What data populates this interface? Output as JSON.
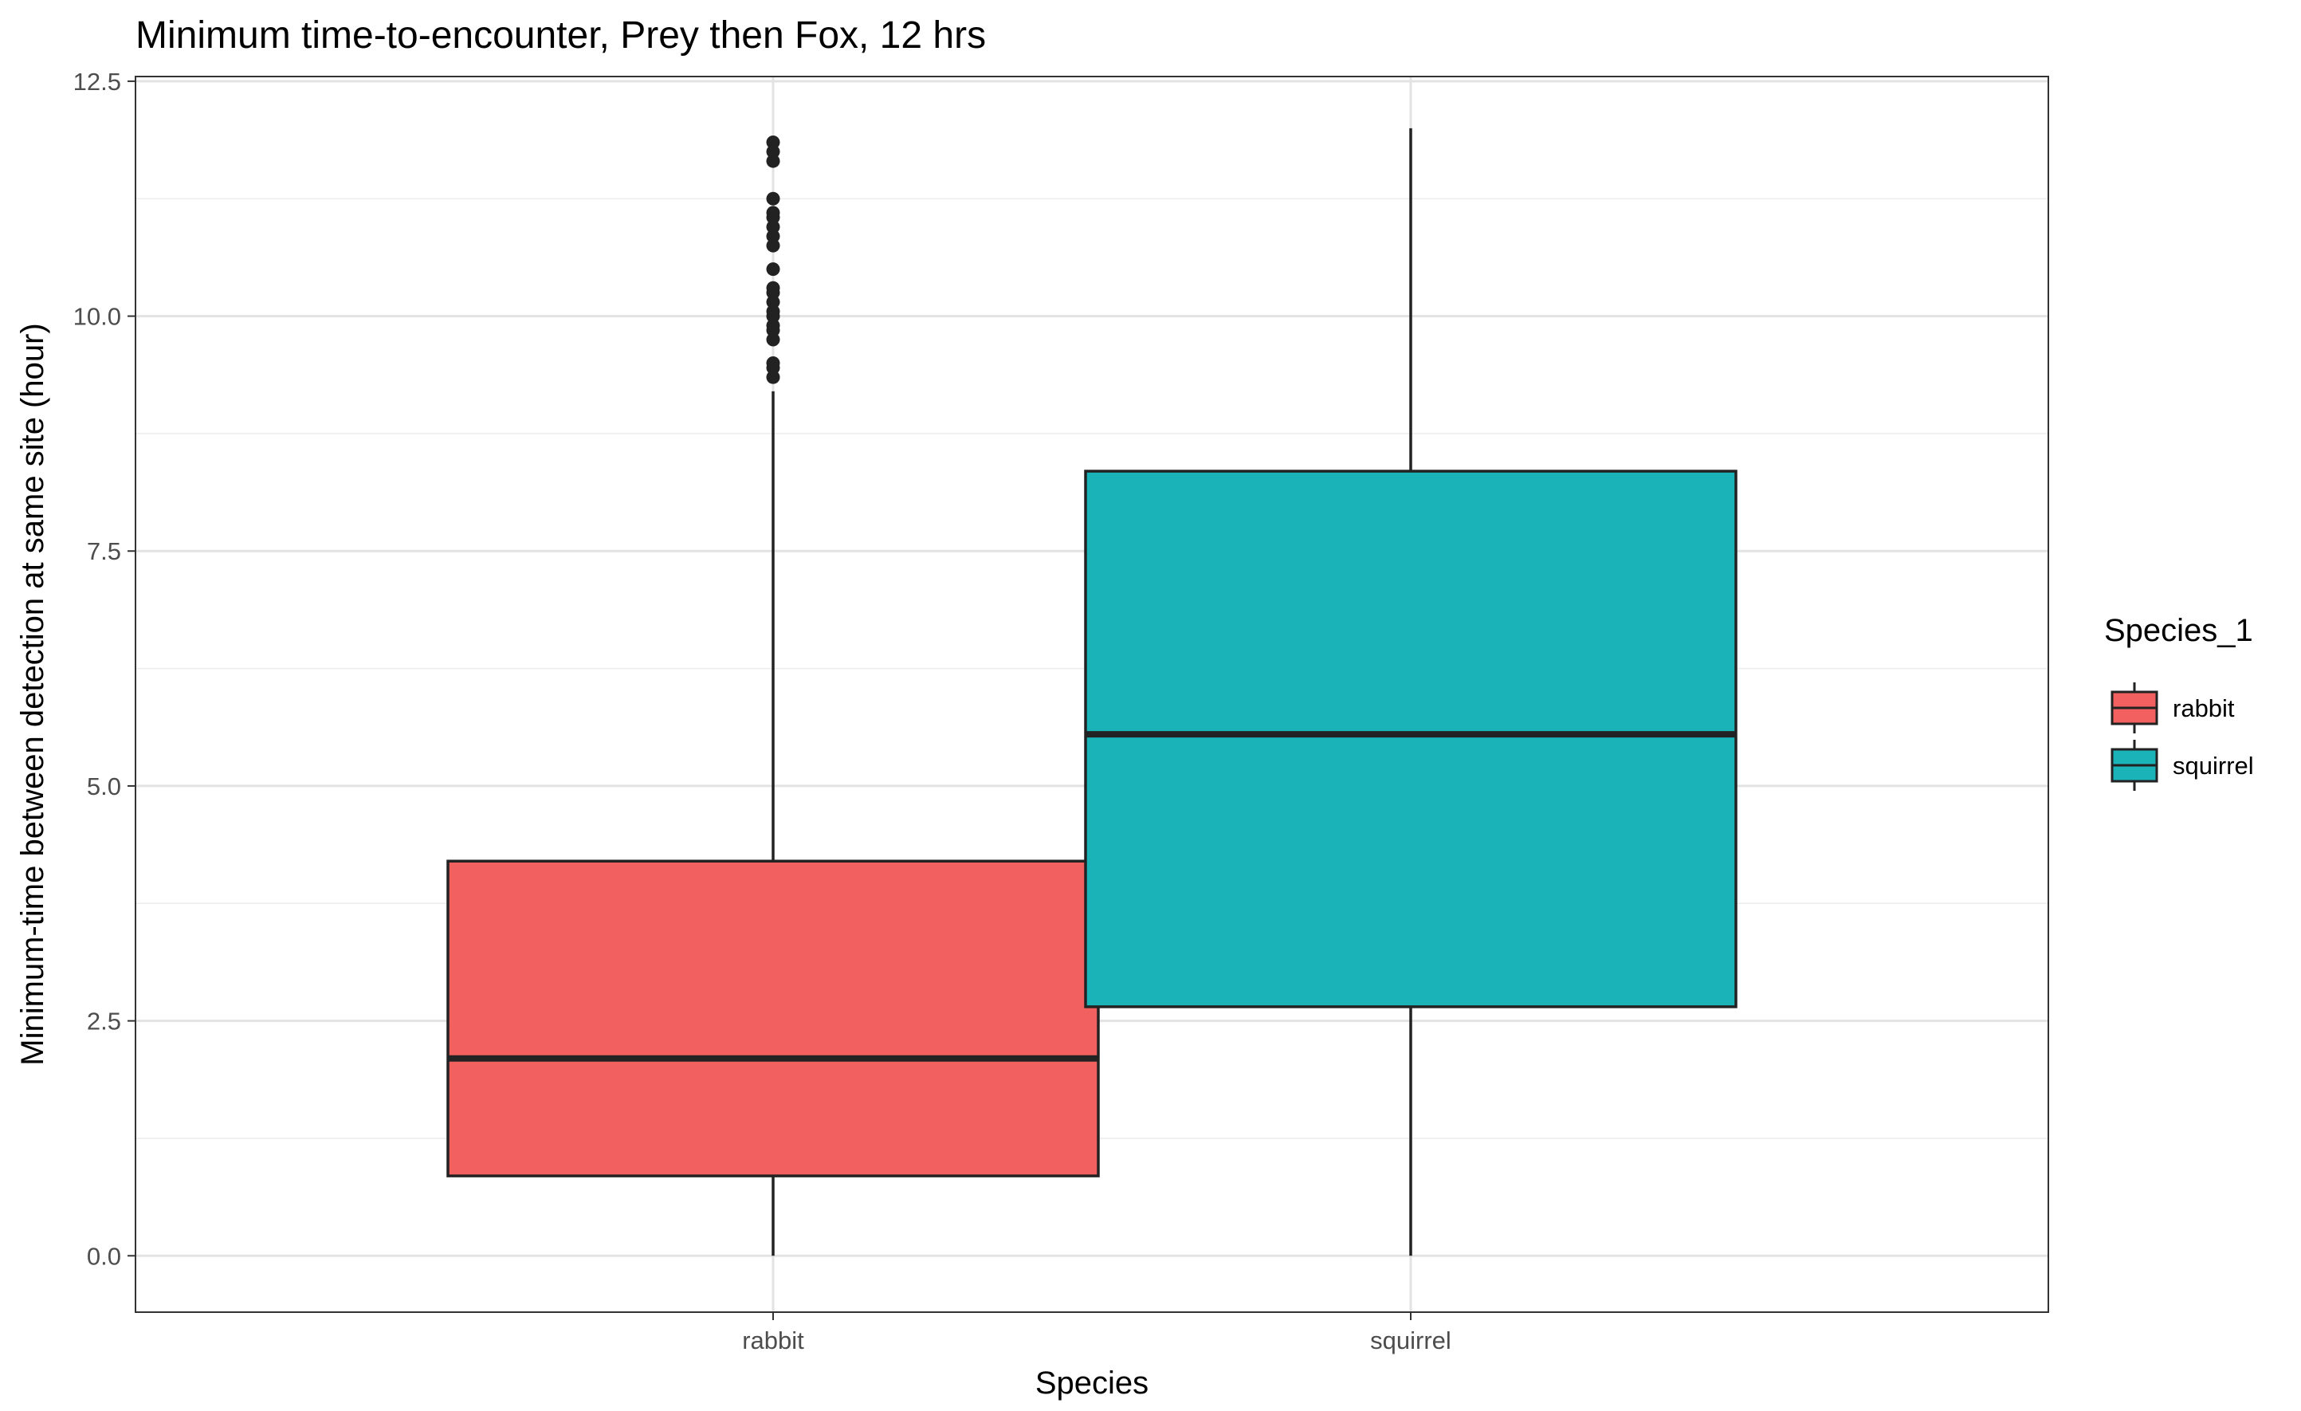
{
  "chart_data": {
    "type": "boxplot",
    "title": "Minimum time-to-encounter, Prey then Fox, 12 hrs",
    "xlabel": "Species",
    "ylabel": "Minimum-time between detection at same site (hour)",
    "ylim": [
      -0.6,
      12.55
    ],
    "yticks": [
      0.0,
      2.5,
      5.0,
      7.5,
      10.0,
      12.5
    ],
    "ytick_labels": [
      "0.0",
      "2.5",
      "5.0",
      "7.5",
      "10.0",
      "12.5"
    ],
    "categories": [
      "rabbit",
      "squirrel"
    ],
    "grid": true,
    "legend": {
      "title": "Species_1",
      "position": "right",
      "entries": [
        "rabbit",
        "squirrel"
      ]
    },
    "colors": {
      "rabbit": "#F26060",
      "squirrel": "#1AB3B7"
    },
    "boxes": [
      {
        "category": "rabbit",
        "min": 0.0,
        "q1": 0.85,
        "median": 2.1,
        "q3": 4.2,
        "max": 9.2,
        "outliers": [
          9.35,
          9.45,
          9.5,
          9.75,
          9.85,
          9.9,
          10.0,
          10.05,
          10.15,
          10.25,
          10.3,
          10.5,
          10.75,
          10.85,
          10.95,
          11.05,
          11.1,
          11.25,
          11.65,
          11.75,
          11.85
        ]
      },
      {
        "category": "squirrel",
        "min": 0.0,
        "q1": 2.65,
        "median": 5.55,
        "q3": 8.35,
        "max": 12.0,
        "outliers": []
      }
    ]
  }
}
